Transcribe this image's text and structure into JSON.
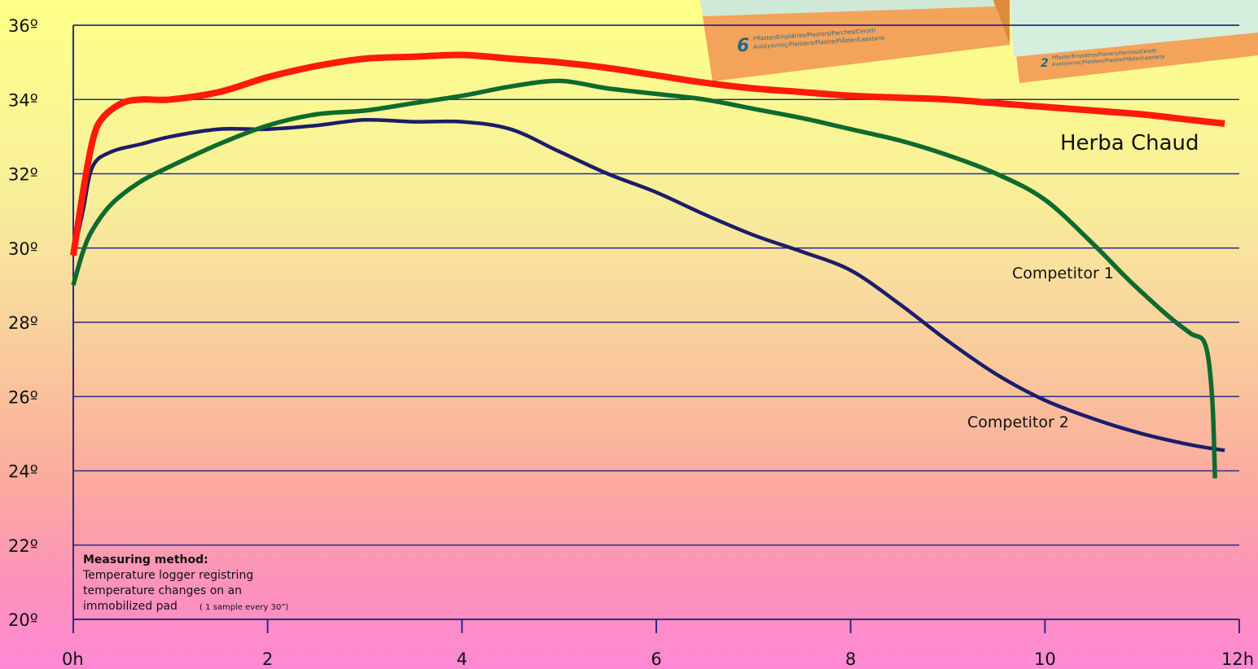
{
  "chart_data": {
    "type": "line",
    "title": "",
    "xlabel": "",
    "ylabel": "",
    "xlim": [
      0,
      12
    ],
    "ylim": [
      20,
      36
    ],
    "grid": true,
    "x_ticks": [
      {
        "value": 0,
        "label": "0h"
      },
      {
        "value": 2,
        "label": "2"
      },
      {
        "value": 4,
        "label": "4"
      },
      {
        "value": 6,
        "label": "6"
      },
      {
        "value": 8,
        "label": "8"
      },
      {
        "value": 10,
        "label": "10"
      },
      {
        "value": 12,
        "label": "12h"
      }
    ],
    "y_ticks": [
      {
        "value": 36,
        "label": "36º"
      },
      {
        "value": 34,
        "label": "34º"
      },
      {
        "value": 32,
        "label": "32º"
      },
      {
        "value": 30,
        "label": "30º"
      },
      {
        "value": 28,
        "label": "28º"
      },
      {
        "value": 26,
        "label": "26º"
      },
      {
        "value": 24,
        "label": "24º"
      },
      {
        "value": 22,
        "label": "22º"
      },
      {
        "value": 20,
        "label": "20º"
      }
    ],
    "series": [
      {
        "name": "Herba Chaud",
        "color": "#ff1a0a",
        "x": [
          0,
          0.1,
          0.2,
          0.3,
          0.5,
          0.7,
          1.0,
          1.5,
          2.0,
          2.5,
          3.0,
          3.5,
          4.0,
          4.5,
          5.0,
          5.5,
          6.0,
          6.5,
          7.0,
          7.5,
          8.0,
          8.5,
          9.0,
          9.5,
          10.0,
          10.5,
          11.0,
          11.5,
          11.85
        ],
        "y": [
          29.8,
          31.5,
          32.9,
          33.5,
          33.9,
          34.0,
          34.0,
          34.2,
          34.6,
          34.9,
          35.1,
          35.15,
          35.2,
          35.1,
          35.0,
          34.85,
          34.65,
          34.45,
          34.3,
          34.2,
          34.1,
          34.05,
          34.0,
          33.9,
          33.8,
          33.7,
          33.6,
          33.45,
          33.35
        ]
      },
      {
        "name": "Competitor 1",
        "color": "#0e6a2e",
        "x": [
          0,
          0.1,
          0.2,
          0.4,
          0.7,
          1.0,
          1.5,
          2.0,
          2.5,
          3.0,
          3.5,
          4.0,
          4.5,
          5.0,
          5.5,
          6.0,
          6.5,
          7.0,
          7.5,
          8.0,
          8.5,
          9.0,
          9.5,
          10.0,
          10.5,
          10.8,
          11.0,
          11.3,
          11.5,
          11.65,
          11.72,
          11.75
        ],
        "y": [
          29.0,
          29.9,
          30.5,
          31.2,
          31.8,
          32.2,
          32.8,
          33.3,
          33.6,
          33.7,
          33.9,
          34.1,
          34.35,
          34.5,
          34.3,
          34.15,
          34.0,
          33.75,
          33.5,
          33.2,
          32.9,
          32.5,
          32.0,
          31.3,
          30.1,
          29.3,
          28.8,
          28.1,
          27.7,
          27.4,
          26.0,
          23.8
        ]
      },
      {
        "name": "Competitor 2",
        "color": "#1c1c6a",
        "x": [
          0,
          0.1,
          0.2,
          0.4,
          0.7,
          1.0,
          1.5,
          2.0,
          2.5,
          3.0,
          3.5,
          4.0,
          4.5,
          5.0,
          5.5,
          6.0,
          6.5,
          7.0,
          7.5,
          8.0,
          8.5,
          9.0,
          9.5,
          10.0,
          10.5,
          11.0,
          11.5,
          11.85
        ],
        "y": [
          29.8,
          31.0,
          32.2,
          32.6,
          32.8,
          33.0,
          33.2,
          33.2,
          33.3,
          33.45,
          33.4,
          33.4,
          33.2,
          32.6,
          32.0,
          31.5,
          30.9,
          30.35,
          29.9,
          29.4,
          28.5,
          27.5,
          26.6,
          25.9,
          25.4,
          25.0,
          24.7,
          24.55
        ]
      }
    ],
    "annotations": {
      "series_labels": [
        "Herba Chaud",
        "Competitor 1",
        "Competitor 2"
      ],
      "note_title": "Measuring method:",
      "note_lines": [
        "Temperature logger registring",
        "temperature changes on an",
        "immobilized pad"
      ],
      "note_small": "( 1 sample every 30”)"
    }
  },
  "product_boxes": [
    {
      "count": "6",
      "line1": "Pflaster/Emplâtres/Plasters/Parches/Cerotti",
      "line2": "Avολyοντος/Pleisters/Plastre/Plåster/Laastaria"
    },
    {
      "count": "2",
      "line1": "Pflaster/Emplâtres/Plasters/Parches/Cerotti",
      "line2": "Avολyοντος/Pleisters/Plastre/Plåster/Laastaria"
    }
  ],
  "colors": {
    "grid": "#2b2b8c",
    "axis": "#2b2b8c",
    "box_front": "#f39a4a",
    "box_top": "#d6eedd"
  }
}
